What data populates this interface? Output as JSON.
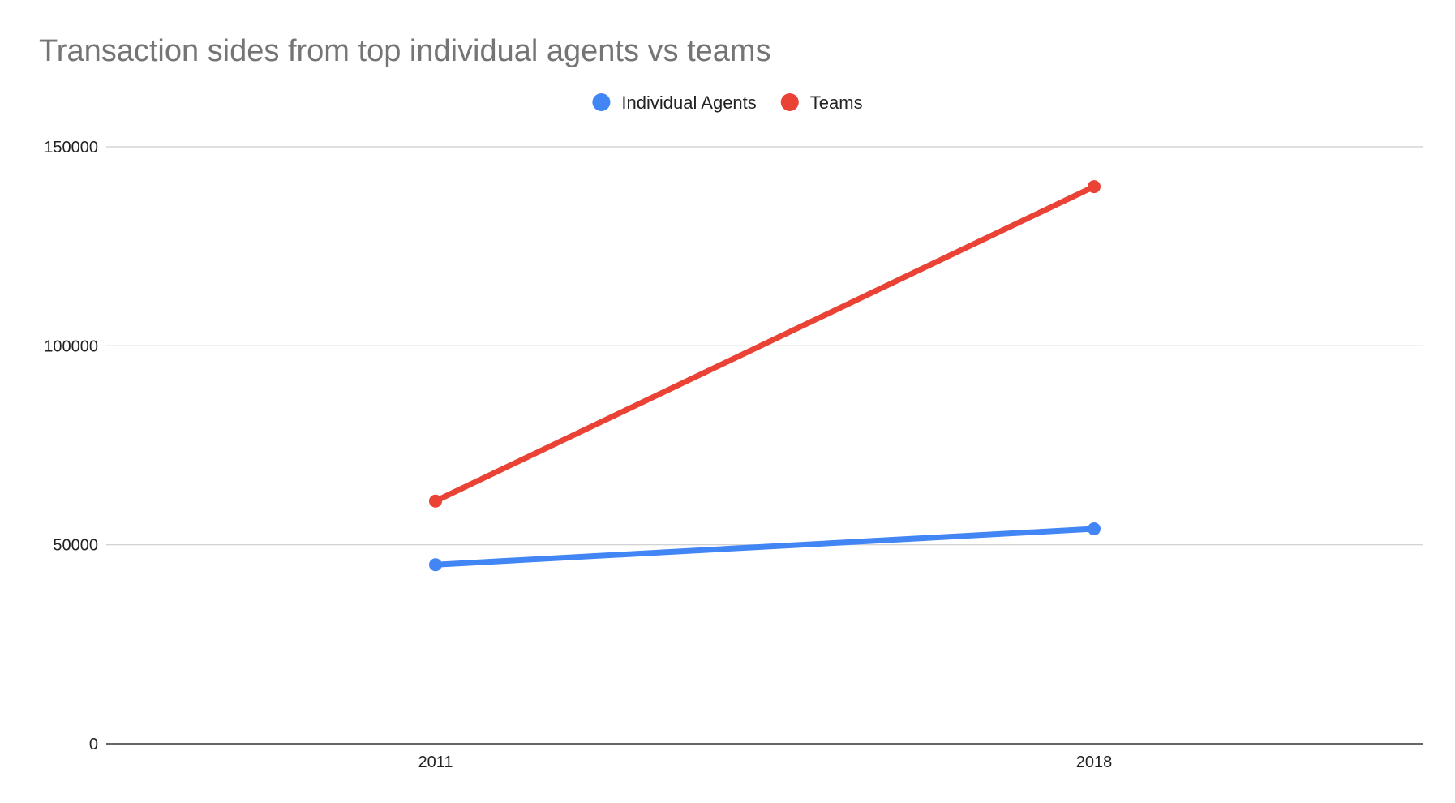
{
  "chart_data": {
    "type": "line",
    "title": "Transaction sides from top individual agents vs teams",
    "xlabel": "",
    "ylabel": "",
    "categories": [
      "2011",
      "2018"
    ],
    "ylim": [
      0,
      150000
    ],
    "yticks": [
      0,
      50000,
      100000,
      150000
    ],
    "grid": true,
    "legend_position": "top",
    "series": [
      {
        "name": "Individual Agents",
        "color": "#4285f4",
        "values": [
          45000,
          54000
        ]
      },
      {
        "name": "Teams",
        "color": "#ea4335",
        "values": [
          61000,
          140000
        ]
      }
    ]
  }
}
